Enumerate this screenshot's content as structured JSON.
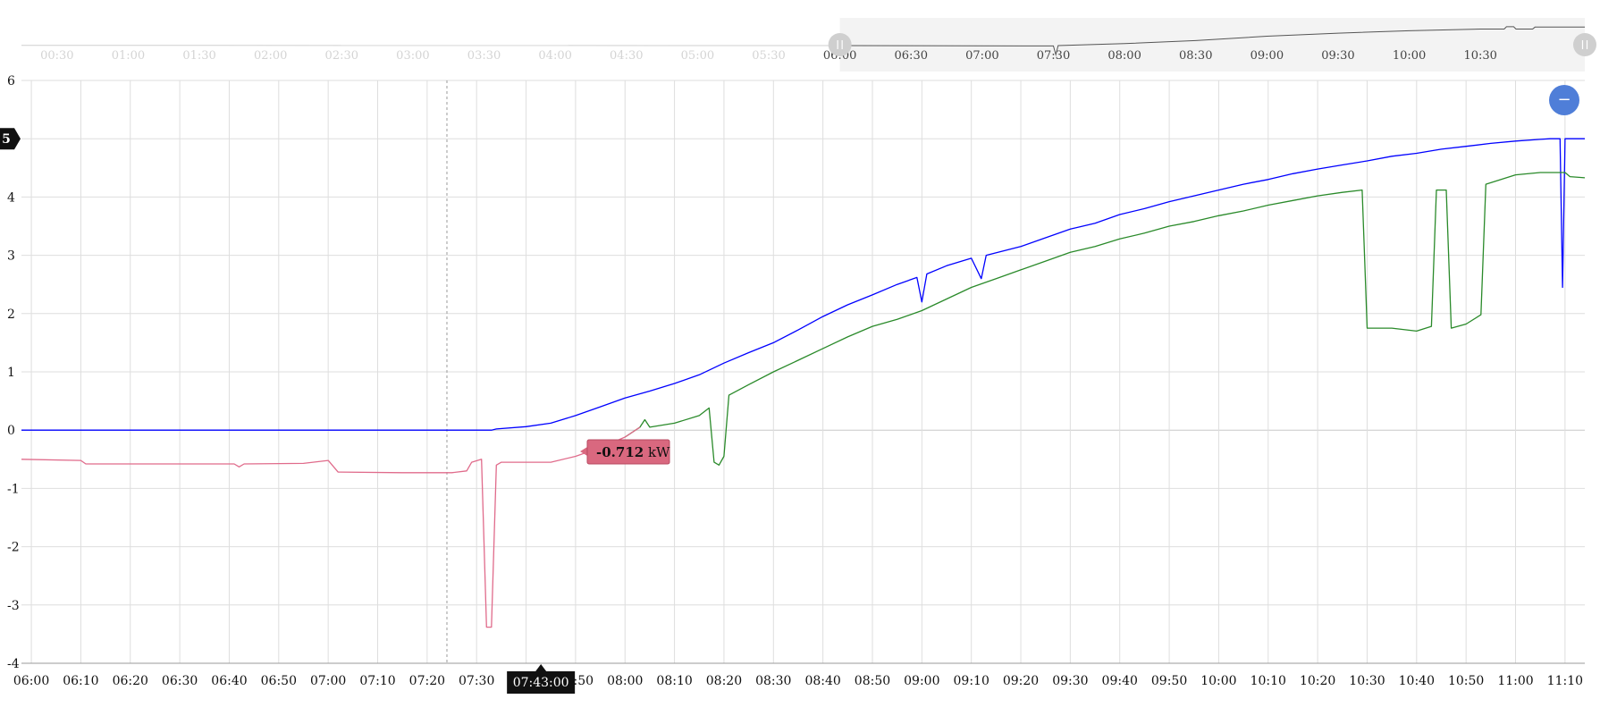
{
  "chart_data": {
    "type": "line",
    "units": "kW",
    "main": {
      "x_ticks": [
        "06:00",
        "06:10",
        "06:20",
        "06:30",
        "06:40",
        "06:50",
        "07:00",
        "07:10",
        "07:20",
        "07:30",
        "07:40",
        "07:50",
        "08:00",
        "08:10",
        "08:20",
        "08:30",
        "08:40",
        "08:50",
        "09:00",
        "09:10",
        "09:20",
        "09:30",
        "09:40",
        "09:50",
        "10:00",
        "10:10",
        "10:20",
        "10:30",
        "10:40",
        "10:50",
        "11:00",
        "11:10"
      ],
      "x_range": [
        "05:58",
        "11:14"
      ],
      "y_ticks": [
        -4,
        -3,
        -2,
        -1,
        0,
        1,
        2,
        3,
        4,
        5,
        6
      ],
      "ylim": [
        -4,
        6
      ],
      "grid": true
    },
    "navigator": {
      "x_ticks": [
        "00:30",
        "01:00",
        "01:30",
        "02:00",
        "02:30",
        "03:00",
        "03:30",
        "04:00",
        "04:30",
        "05:00",
        "05:30",
        "06:00",
        "06:30",
        "07:00",
        "07:30",
        "08:00",
        "08:30",
        "09:00",
        "09:30",
        "10:00",
        "10:30"
      ],
      "x_range": [
        "00:15",
        "11:14"
      ],
      "selected_range": [
        "06:00",
        "11:14"
      ]
    },
    "series": [
      {
        "color": "#0000ff",
        "points": [
          [
            "05:58",
            0
          ],
          [
            "07:33",
            0
          ],
          [
            "07:34",
            0.02
          ],
          [
            "07:40",
            0.06
          ],
          [
            "07:45",
            0.12
          ],
          [
            "07:50",
            0.25
          ],
          [
            "07:55",
            0.4
          ],
          [
            "08:00",
            0.55
          ],
          [
            "08:05",
            0.67
          ],
          [
            "08:10",
            0.8
          ],
          [
            "08:15",
            0.95
          ],
          [
            "08:20",
            1.15
          ],
          [
            "08:25",
            1.33
          ],
          [
            "08:30",
            1.5
          ],
          [
            "08:35",
            1.72
          ],
          [
            "08:40",
            1.95
          ],
          [
            "08:45",
            2.15
          ],
          [
            "08:50",
            2.32
          ],
          [
            "08:55",
            2.5
          ],
          [
            "08:59",
            2.62
          ],
          [
            "09:00",
            2.2
          ],
          [
            "09:01",
            2.68
          ],
          [
            "09:05",
            2.82
          ],
          [
            "09:10",
            2.95
          ],
          [
            "09:12",
            2.6
          ],
          [
            "09:13",
            3.0
          ],
          [
            "09:20",
            3.15
          ],
          [
            "09:25",
            3.3
          ],
          [
            "09:30",
            3.45
          ],
          [
            "09:35",
            3.55
          ],
          [
            "09:40",
            3.7
          ],
          [
            "09:45",
            3.8
          ],
          [
            "09:50",
            3.92
          ],
          [
            "09:55",
            4.02
          ],
          [
            "10:00",
            4.12
          ],
          [
            "10:05",
            4.22
          ],
          [
            "10:10",
            4.3
          ],
          [
            "10:15",
            4.4
          ],
          [
            "10:20",
            4.48
          ],
          [
            "10:25",
            4.55
          ],
          [
            "10:30",
            4.62
          ],
          [
            "10:35",
            4.7
          ],
          [
            "10:40",
            4.75
          ],
          [
            "10:45",
            4.82
          ],
          [
            "10:50",
            4.87
          ],
          [
            "10:55",
            4.92
          ],
          [
            "11:00",
            4.96
          ],
          [
            "11:05",
            4.99
          ],
          [
            "11:07",
            5.0
          ],
          [
            "11:09",
            5.0
          ],
          [
            "11:09.5",
            2.45
          ],
          [
            "11:10",
            5.0
          ],
          [
            "11:14",
            5.0
          ]
        ]
      },
      {
        "color": "#2a8a2a",
        "points": [
          [
            "08:00",
            -0.12
          ],
          [
            "08:03",
            0.05
          ],
          [
            "08:04",
            0.18
          ],
          [
            "08:05",
            0.05
          ],
          [
            "08:10",
            0.12
          ],
          [
            "08:15",
            0.25
          ],
          [
            "08:17",
            0.38
          ],
          [
            "08:18",
            -0.55
          ],
          [
            "08:19",
            -0.6
          ],
          [
            "08:20",
            -0.45
          ],
          [
            "08:21",
            0.6
          ],
          [
            "08:25",
            0.78
          ],
          [
            "08:30",
            1.0
          ],
          [
            "08:35",
            1.2
          ],
          [
            "08:40",
            1.4
          ],
          [
            "08:45",
            1.6
          ],
          [
            "08:50",
            1.78
          ],
          [
            "08:55",
            1.9
          ],
          [
            "09:00",
            2.05
          ],
          [
            "09:05",
            2.25
          ],
          [
            "09:10",
            2.45
          ],
          [
            "09:15",
            2.6
          ],
          [
            "09:20",
            2.75
          ],
          [
            "09:25",
            2.9
          ],
          [
            "09:30",
            3.05
          ],
          [
            "09:35",
            3.15
          ],
          [
            "09:40",
            3.28
          ],
          [
            "09:45",
            3.38
          ],
          [
            "09:50",
            3.5
          ],
          [
            "09:55",
            3.58
          ],
          [
            "10:00",
            3.68
          ],
          [
            "10:05",
            3.76
          ],
          [
            "10:10",
            3.86
          ],
          [
            "10:15",
            3.94
          ],
          [
            "10:20",
            4.02
          ],
          [
            "10:25",
            4.08
          ],
          [
            "10:29",
            4.12
          ],
          [
            "10:30",
            1.75
          ],
          [
            "10:35",
            1.75
          ],
          [
            "10:40",
            1.7
          ],
          [
            "10:43",
            1.78
          ],
          [
            "10:44",
            4.12
          ],
          [
            "10:46",
            4.12
          ],
          [
            "10:47",
            1.75
          ],
          [
            "10:50",
            1.82
          ],
          [
            "10:53",
            1.98
          ],
          [
            "10:54",
            4.22
          ],
          [
            "11:00",
            4.38
          ],
          [
            "11:05",
            4.42
          ],
          [
            "11:10",
            4.42
          ],
          [
            "11:11",
            4.35
          ],
          [
            "11:14",
            4.33
          ]
        ]
      },
      {
        "color": "#e06b8b",
        "points": [
          [
            "05:58",
            -0.5
          ],
          [
            "06:10",
            -0.52
          ],
          [
            "06:11",
            -0.58
          ],
          [
            "06:30",
            -0.58
          ],
          [
            "06:41",
            -0.58
          ],
          [
            "06:42",
            -0.63
          ],
          [
            "06:43",
            -0.58
          ],
          [
            "06:55",
            -0.57
          ],
          [
            "07:00",
            -0.52
          ],
          [
            "07:02",
            -0.72
          ],
          [
            "07:15",
            -0.73
          ],
          [
            "07:25",
            -0.73
          ],
          [
            "07:28",
            -0.7
          ],
          [
            "07:29",
            -0.55
          ],
          [
            "07:31",
            -0.5
          ],
          [
            "07:32",
            -3.38
          ],
          [
            "07:33",
            -3.38
          ],
          [
            "07:34",
            -0.6
          ],
          [
            "07:35",
            -0.55
          ],
          [
            "07:40",
            -0.55
          ],
          [
            "07:45",
            -0.55
          ],
          [
            "07:50",
            -0.45
          ],
          [
            "07:55",
            -0.3
          ],
          [
            "08:00",
            -0.12
          ],
          [
            "08:03",
            0.05
          ]
        ]
      }
    ],
    "navigator_series": {
      "color": "#555555",
      "points": [
        [
          "00:15",
          -0.5
        ],
        [
          "07:30",
          -0.7
        ],
        [
          "07:31",
          -3.3
        ],
        [
          "07:32",
          -0.6
        ],
        [
          "08:00",
          0
        ],
        [
          "08:30",
          0.9
        ],
        [
          "09:00",
          2.2
        ],
        [
          "09:30",
          3.1
        ],
        [
          "10:00",
          3.8
        ],
        [
          "10:30",
          4.3
        ],
        [
          "10:40",
          4.3
        ],
        [
          "10:41",
          5.0
        ],
        [
          "10:44",
          5.0
        ],
        [
          "10:45",
          4.3
        ],
        [
          "10:52",
          4.3
        ],
        [
          "10:53",
          4.9
        ],
        [
          "11:14",
          4.9
        ]
      ]
    },
    "tooltip": {
      "value": "-0.712",
      "unit": "kW"
    },
    "crosshair": {
      "time": "07:43:00",
      "y_value": "5"
    },
    "zoom_out_symbol": "−"
  }
}
